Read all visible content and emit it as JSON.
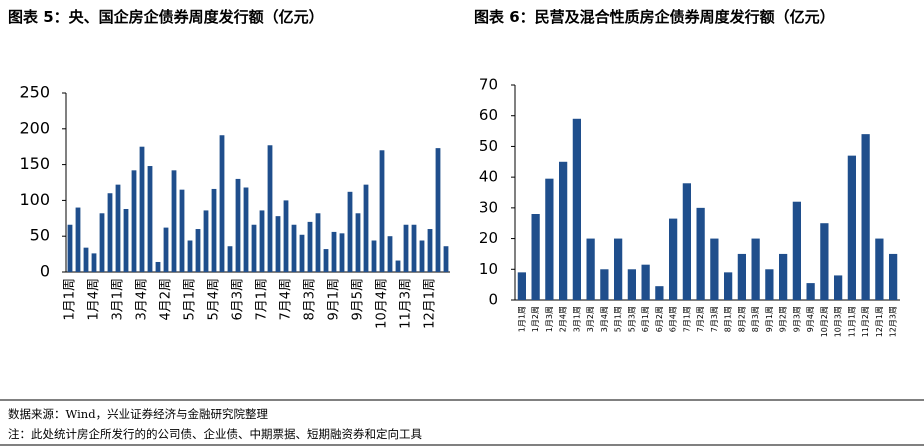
{
  "chart_data": [
    {
      "type": "bar",
      "title": "图表 5：央、国企房企债券周度发行额（亿元）",
      "color": "#1f4e8c",
      "categories": [
        "1月1周",
        null,
        null,
        "1月4周",
        null,
        null,
        "3月1周",
        null,
        null,
        "3月4周",
        null,
        null,
        "4月2周",
        null,
        null,
        "5月1周",
        null,
        null,
        "5月4周",
        null,
        null,
        "6月3周",
        null,
        null,
        "7月1周",
        null,
        null,
        "7月4周",
        null,
        null,
        "8月3周",
        null,
        null,
        "9月1周",
        null,
        null,
        "9月5周",
        null,
        null,
        "10月4周",
        null,
        null,
        "11月3周",
        null,
        null,
        "12月1周",
        null,
        null
      ],
      "values": [
        66,
        90,
        34,
        26,
        82,
        110,
        122,
        88,
        142,
        175,
        148,
        14,
        62,
        142,
        115,
        44,
        60,
        86,
        116,
        191,
        36,
        130,
        118,
        66,
        86,
        177,
        78,
        100,
        66,
        52,
        70,
        82,
        32,
        56,
        54,
        112,
        82,
        122,
        44,
        170,
        50,
        16,
        66,
        66,
        44,
        60,
        173,
        36
      ],
      "ylim": [
        0,
        250
      ],
      "yticks": [
        0,
        50,
        100,
        150,
        200,
        250
      ]
    },
    {
      "type": "bar",
      "title": "图表 6：民营及混合性质房企债券周度发行额（亿元）",
      "color": "#1f4e8c",
      "categories": [
        "1月1周",
        "1月2周",
        "1月3周",
        "2月4周",
        "3月1周",
        "3月2周",
        "3月4周",
        "5月1周",
        "5月3周",
        "6月1周",
        "6月2周",
        "6月4周",
        "7月1周",
        "7月2周",
        "7月3周",
        "8月1周",
        "8月2周",
        "8月3周",
        "9月1周",
        "9月2周",
        "9月3周",
        "9月4周",
        "10月2周",
        "10月3周",
        "11月1周",
        "11月2周",
        "12月1周",
        "12月3周"
      ],
      "values": [
        9,
        28,
        39.5,
        45,
        59,
        20,
        10,
        20,
        10,
        11.5,
        4.5,
        26.5,
        38,
        30,
        20,
        9,
        15,
        20,
        10,
        15,
        32,
        5.5,
        25,
        8,
        47,
        54,
        20,
        15
      ],
      "ylim": [
        0,
        70
      ],
      "yticks": [
        0,
        10,
        20,
        30,
        40,
        50,
        60,
        70
      ]
    }
  ],
  "source": "数据来源：Wind，兴业证券经济与金融研究院整理",
  "note": "注：此处统计房企所发行的的公司债、企业债、中期票据、短期融资券和定向工具"
}
